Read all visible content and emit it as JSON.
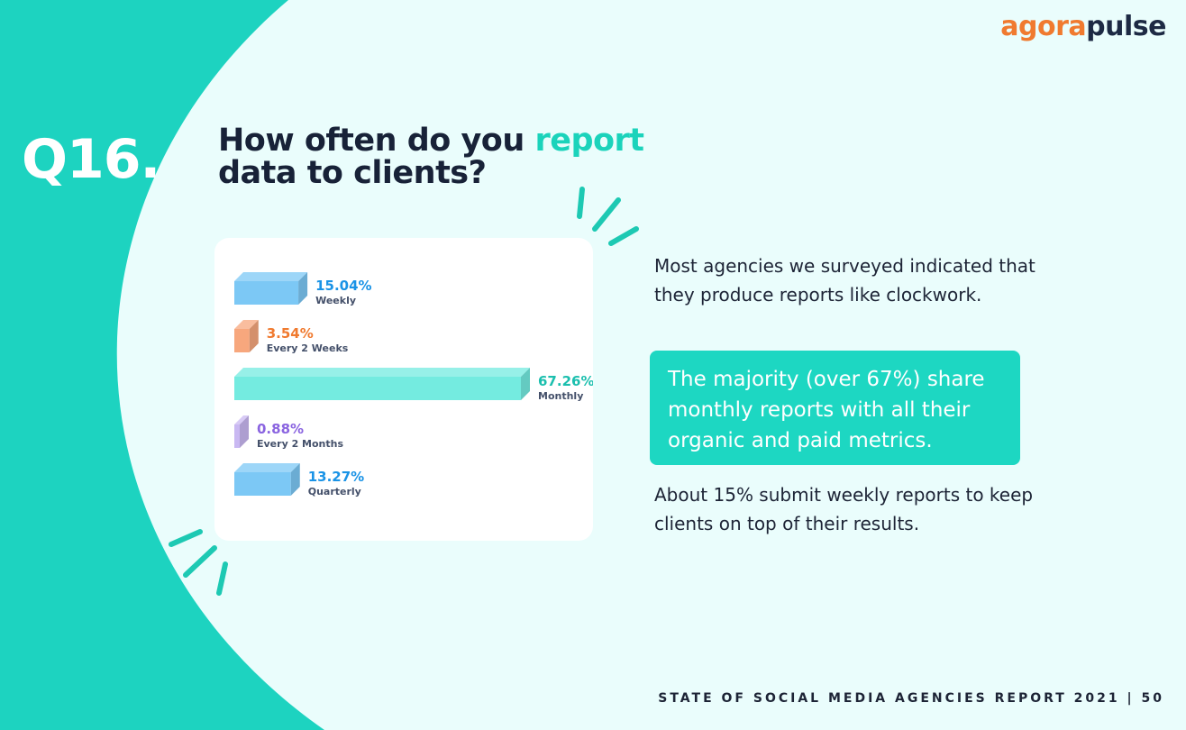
{
  "logo": {
    "part1": "agora",
    "part2": "pulse"
  },
  "question_number": "Q16.",
  "title": {
    "part1": "How often do you ",
    "highlight": "report",
    "part2": "data to clients?"
  },
  "chart_data": {
    "type": "bar",
    "categories": [
      "Weekly",
      "Every 2 Weeks",
      "Monthly",
      "Every 2 Months",
      "Quarterly"
    ],
    "values": [
      15.04,
      3.54,
      67.26,
      0.88,
      13.27
    ],
    "value_labels": [
      "15.04%",
      "3.54%",
      "67.26%",
      "0.88%",
      "13.27%"
    ],
    "colors": [
      "#7cc8f5",
      "#f7a77d",
      "#74ebe0",
      "#c9b8f2",
      "#7cc8f5"
    ],
    "label_colors": [
      "#1a93e6",
      "#f07a2f",
      "#1bbfae",
      "#8a64e0",
      "#1a93e6"
    ],
    "xlim": [
      0,
      67.26
    ],
    "title": "",
    "xlabel": "",
    "ylabel": ""
  },
  "paragraph1": "Most agencies we surveyed indicated that they produce reports like clockwork.",
  "callout": "The majority (over 67%) share monthly reports with all their organic and paid metrics.",
  "paragraph2": "About 15% submit weekly reports to keep clients on top of their results.",
  "footer": "STATE OF SOCIAL MEDIA AGENCIES REPORT 2021 | 50",
  "colors": {
    "teal": "#1dd3c0",
    "navy": "#182238",
    "orange": "#f07a2f",
    "background": "#eafdfc"
  }
}
